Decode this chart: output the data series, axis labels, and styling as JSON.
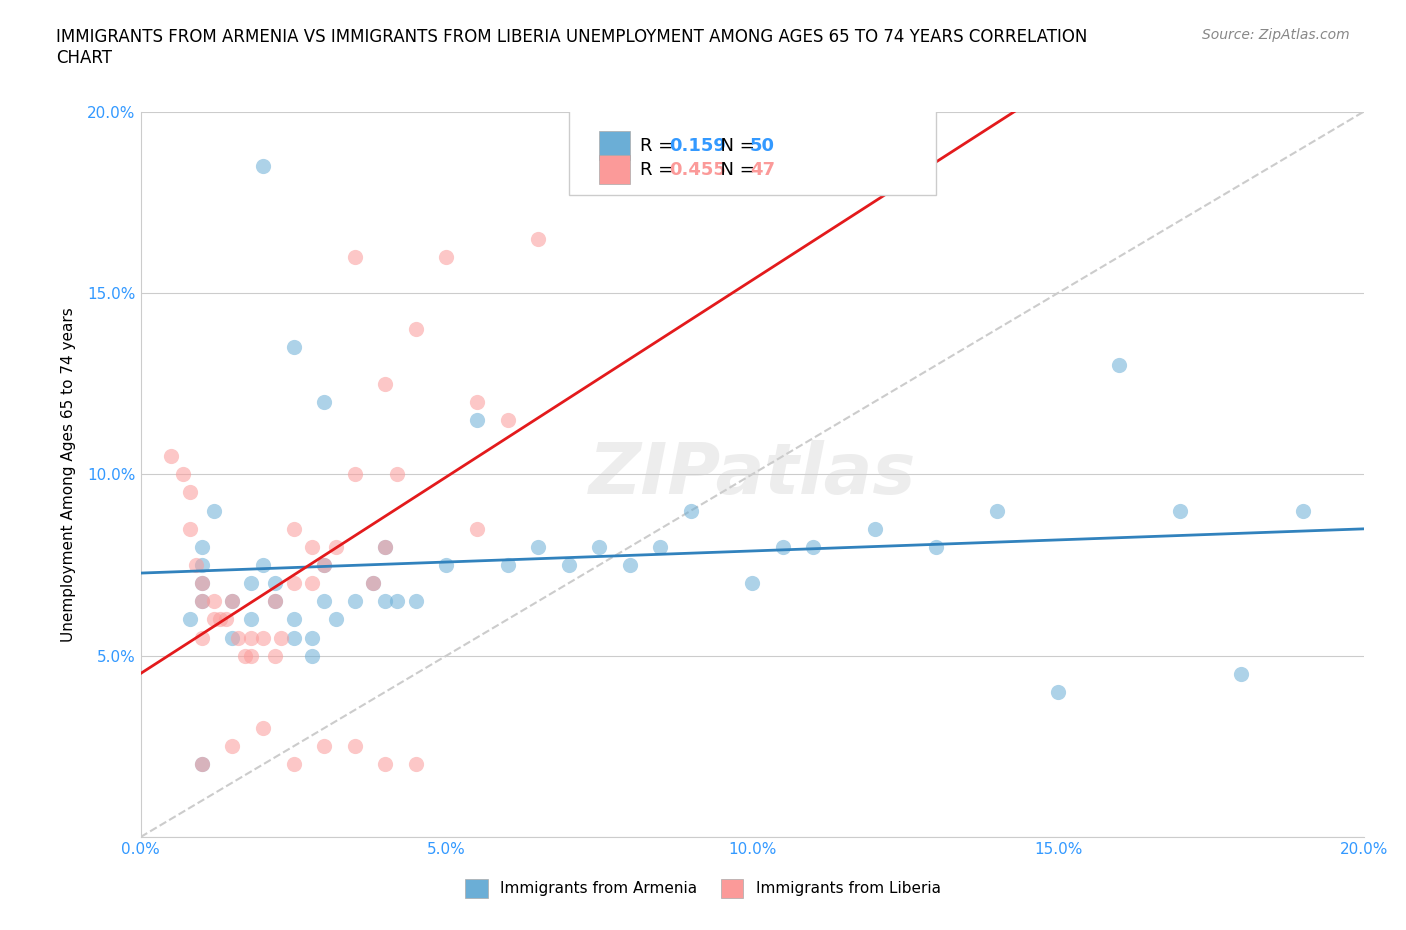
{
  "title": "IMMIGRANTS FROM ARMENIA VS IMMIGRANTS FROM LIBERIA UNEMPLOYMENT AMONG AGES 65 TO 74 YEARS CORRELATION\nCHART",
  "source_text": "Source: ZipAtlas.com",
  "ylabel": "Unemployment Among Ages 65 to 74 years",
  "xlim": [
    0.0,
    0.2
  ],
  "ylim": [
    0.0,
    0.2
  ],
  "armenia_R": 0.159,
  "armenia_N": 50,
  "liberia_R": 0.455,
  "liberia_N": 47,
  "armenia_color": "#6baed6",
  "liberia_color": "#fb9a99",
  "armenia_line_color": "#3182bd",
  "liberia_line_color": "#e31a1c",
  "diagonal_color": "#cccccc",
  "tick_color": "#3399ff",
  "armenia_scatter": [
    [
      0.01,
      0.065
    ],
    [
      0.01,
      0.075
    ],
    [
      0.01,
      0.08
    ],
    [
      0.01,
      0.07
    ],
    [
      0.008,
      0.06
    ],
    [
      0.012,
      0.09
    ],
    [
      0.015,
      0.065
    ],
    [
      0.015,
      0.055
    ],
    [
      0.018,
      0.07
    ],
    [
      0.018,
      0.06
    ],
    [
      0.02,
      0.075
    ],
    [
      0.022,
      0.07
    ],
    [
      0.022,
      0.065
    ],
    [
      0.025,
      0.06
    ],
    [
      0.025,
      0.055
    ],
    [
      0.028,
      0.055
    ],
    [
      0.028,
      0.05
    ],
    [
      0.03,
      0.075
    ],
    [
      0.03,
      0.065
    ],
    [
      0.032,
      0.06
    ],
    [
      0.035,
      0.065
    ],
    [
      0.038,
      0.07
    ],
    [
      0.04,
      0.08
    ],
    [
      0.04,
      0.065
    ],
    [
      0.042,
      0.065
    ],
    [
      0.045,
      0.065
    ],
    [
      0.05,
      0.075
    ],
    [
      0.055,
      0.115
    ],
    [
      0.06,
      0.075
    ],
    [
      0.065,
      0.08
    ],
    [
      0.07,
      0.075
    ],
    [
      0.075,
      0.08
    ],
    [
      0.08,
      0.075
    ],
    [
      0.085,
      0.08
    ],
    [
      0.09,
      0.09
    ],
    [
      0.1,
      0.07
    ],
    [
      0.105,
      0.08
    ],
    [
      0.11,
      0.08
    ],
    [
      0.12,
      0.085
    ],
    [
      0.13,
      0.08
    ],
    [
      0.14,
      0.09
    ],
    [
      0.15,
      0.04
    ],
    [
      0.16,
      0.13
    ],
    [
      0.17,
      0.09
    ],
    [
      0.18,
      0.045
    ],
    [
      0.02,
      0.185
    ],
    [
      0.025,
      0.135
    ],
    [
      0.03,
      0.12
    ],
    [
      0.19,
      0.09
    ],
    [
      0.01,
      0.02
    ]
  ],
  "liberia_scatter": [
    [
      0.005,
      0.105
    ],
    [
      0.007,
      0.1
    ],
    [
      0.008,
      0.095
    ],
    [
      0.008,
      0.085
    ],
    [
      0.009,
      0.075
    ],
    [
      0.01,
      0.065
    ],
    [
      0.01,
      0.07
    ],
    [
      0.01,
      0.055
    ],
    [
      0.012,
      0.06
    ],
    [
      0.012,
      0.065
    ],
    [
      0.013,
      0.06
    ],
    [
      0.014,
      0.06
    ],
    [
      0.015,
      0.065
    ],
    [
      0.016,
      0.055
    ],
    [
      0.017,
      0.05
    ],
    [
      0.018,
      0.055
    ],
    [
      0.018,
      0.05
    ],
    [
      0.02,
      0.055
    ],
    [
      0.022,
      0.05
    ],
    [
      0.022,
      0.065
    ],
    [
      0.023,
      0.055
    ],
    [
      0.025,
      0.085
    ],
    [
      0.025,
      0.07
    ],
    [
      0.028,
      0.08
    ],
    [
      0.028,
      0.07
    ],
    [
      0.03,
      0.075
    ],
    [
      0.032,
      0.08
    ],
    [
      0.035,
      0.1
    ],
    [
      0.038,
      0.07
    ],
    [
      0.04,
      0.08
    ],
    [
      0.04,
      0.125
    ],
    [
      0.042,
      0.1
    ],
    [
      0.045,
      0.14
    ],
    [
      0.05,
      0.16
    ],
    [
      0.055,
      0.12
    ],
    [
      0.055,
      0.085
    ],
    [
      0.06,
      0.115
    ],
    [
      0.065,
      0.165
    ],
    [
      0.01,
      0.02
    ],
    [
      0.015,
      0.025
    ],
    [
      0.02,
      0.03
    ],
    [
      0.025,
      0.02
    ],
    [
      0.03,
      0.025
    ],
    [
      0.035,
      0.025
    ],
    [
      0.04,
      0.02
    ],
    [
      0.045,
      0.02
    ],
    [
      0.035,
      0.16
    ]
  ]
}
